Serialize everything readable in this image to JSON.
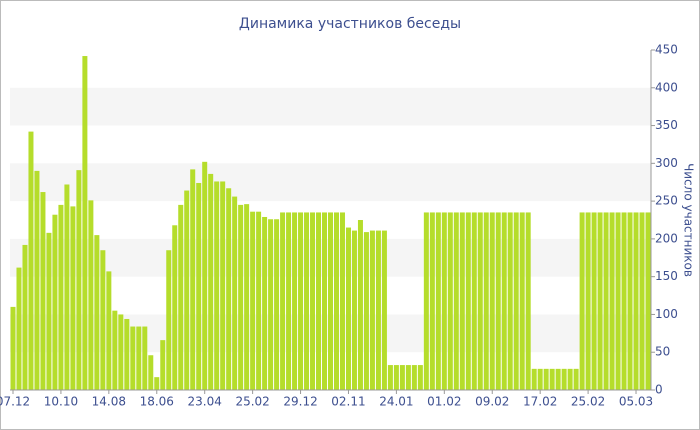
{
  "chart_data": {
    "type": "bar",
    "title": "Динамика участников беседы",
    "y_axis_label": "Число участников",
    "categories": [
      "07.12",
      null,
      null,
      null,
      null,
      null,
      null,
      null,
      "10.10",
      null,
      null,
      null,
      null,
      null,
      null,
      null,
      "14.08",
      null,
      null,
      null,
      null,
      null,
      null,
      null,
      "18.06",
      null,
      null,
      null,
      null,
      null,
      null,
      null,
      "23.04",
      null,
      null,
      null,
      null,
      null,
      null,
      null,
      "25.02",
      null,
      null,
      null,
      null,
      null,
      null,
      null,
      "29.12",
      null,
      null,
      null,
      null,
      null,
      null,
      null,
      "02.11",
      null,
      null,
      null,
      null,
      null,
      null,
      null,
      "24.01",
      null,
      null,
      null,
      null,
      null,
      null,
      null,
      "01.02",
      null,
      null,
      null,
      null,
      null,
      null,
      null,
      "09.02",
      null,
      null,
      null,
      null,
      null,
      null,
      null,
      "17.02",
      null,
      null,
      null,
      null,
      null,
      null,
      null,
      "25.02",
      null,
      null,
      null,
      null,
      null,
      null,
      null,
      "05.03",
      null,
      null
    ],
    "values": [
      110,
      162,
      192,
      342,
      290,
      262,
      208,
      232,
      245,
      272,
      243,
      291,
      442,
      251,
      205,
      185,
      157,
      105,
      100,
      94,
      84,
      84,
      84,
      46,
      17,
      66,
      185,
      218,
      245,
      264,
      292,
      274,
      302,
      286,
      276,
      276,
      267,
      256,
      245,
      246,
      236,
      236,
      229,
      226,
      226,
      235,
      235,
      235,
      235,
      235,
      235,
      235,
      235,
      235,
      235,
      235,
      215,
      211,
      225,
      209,
      211,
      211,
      211,
      33,
      33,
      33,
      33,
      33,
      33,
      235,
      235,
      235,
      235,
      235,
      235,
      235,
      235,
      235,
      235,
      235,
      235,
      235,
      235,
      235,
      235,
      235,
      235,
      28,
      28,
      28,
      28,
      28,
      28,
      28,
      28,
      235,
      235,
      235,
      235,
      235,
      235,
      235,
      235,
      235,
      235,
      235,
      235
    ],
    "color": "#b5dd2b",
    "ylim": [
      0,
      450
    ],
    "yticks": [
      0,
      50,
      100,
      150,
      200,
      250,
      300,
      350,
      400,
      450
    ],
    "grid": "bands"
  }
}
